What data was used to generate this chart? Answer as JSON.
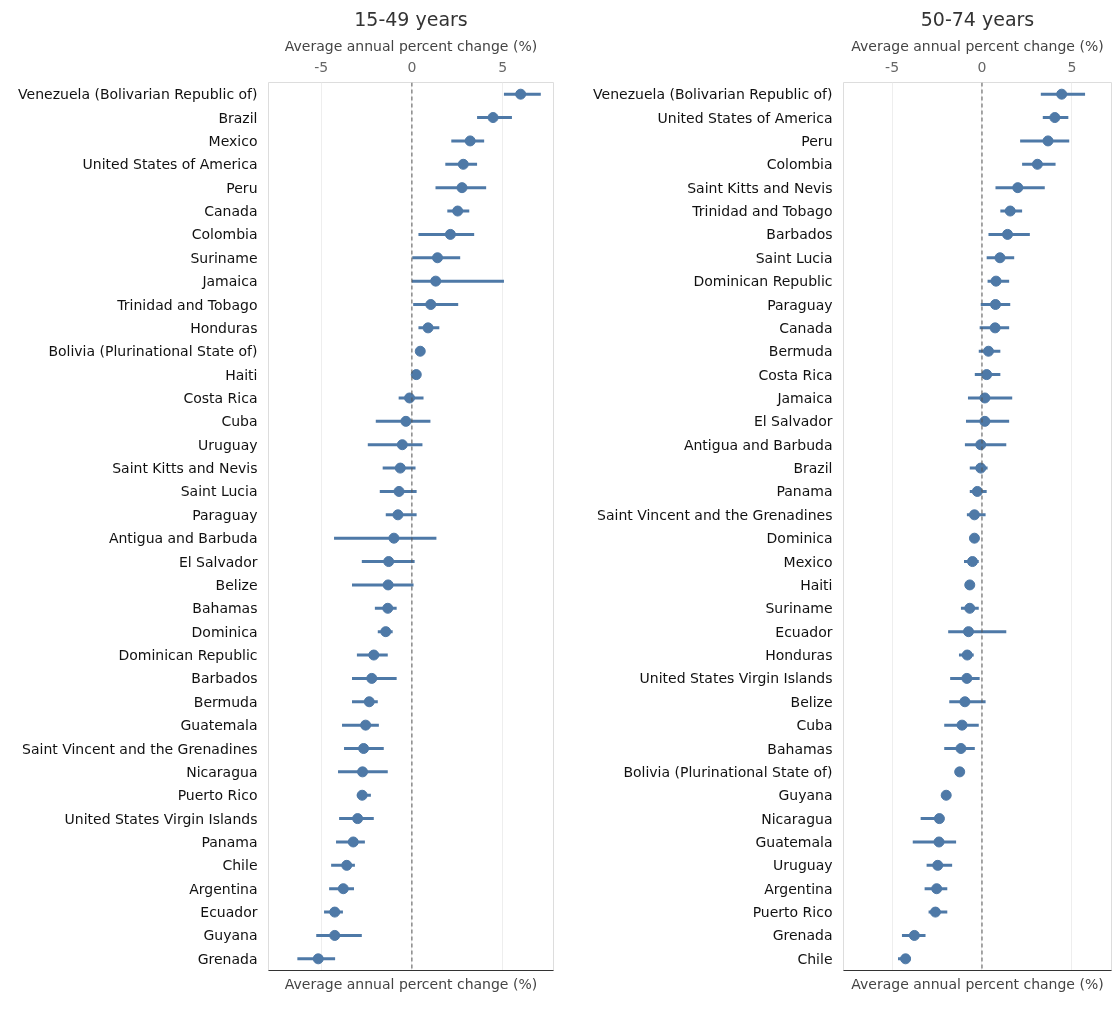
{
  "chart_data": [
    {
      "type": "scatter",
      "orientation": "horizontal",
      "title": "15-49 years",
      "xlabel": "Average annual percent change (%)",
      "marker": "circle",
      "grid": "x",
      "categories": [
        "Venezuela (Bolivarian Republic of)",
        "Brazil",
        "Mexico",
        "United States of America",
        "Peru",
        "Canada",
        "Colombia",
        "Suriname",
        "Jamaica",
        "Trinidad and Tobago",
        "Honduras",
        "Bolivia (Plurinational State of)",
        "Haiti",
        "Costa Rica",
        "Cuba",
        "Uruguay",
        "Saint Kitts and Nevis",
        "Saint Lucia",
        "Paraguay",
        "Antigua and Barbuda",
        "El Salvador",
        "Belize",
        "Bahamas",
        "Dominica",
        "Dominican Republic",
        "Barbados",
        "Bermuda",
        "Guatemala",
        "Saint Vincent and the Grenadines",
        "Nicaragua",
        "Puerto Rico",
        "United States Virgin Islands",
        "Panama",
        "Chile",
        "Argentina",
        "Ecuador",
        "Guyana",
        "Grenada"
      ],
      "series": [
        {
          "color": "#4e79a7",
          "values": [
            5.99,
            4.47,
            3.21,
            2.83,
            2.76,
            2.52,
            2.12,
            1.41,
            1.31,
            1.04,
            0.89,
            0.46,
            0.24,
            -0.13,
            -0.33,
            -0.53,
            -0.64,
            -0.71,
            -0.77,
            -0.99,
            -1.28,
            -1.31,
            -1.33,
            -1.44,
            -2.1,
            -2.21,
            -2.35,
            -2.55,
            -2.66,
            -2.72,
            -2.74,
            -2.99,
            -3.23,
            -3.59,
            -3.78,
            -4.25,
            -4.25,
            -5.16
          ],
          "errors": [
            [
              5.07,
              7.1
            ],
            [
              3.59,
              5.51
            ],
            [
              2.17,
              3.98
            ],
            [
              1.84,
              3.59
            ],
            [
              1.3,
              4.09
            ],
            [
              1.95,
              3.16
            ],
            [
              0.36,
              3.43
            ],
            [
              0.02,
              2.66
            ],
            [
              0.0,
              5.07
            ],
            [
              0.07,
              2.55
            ],
            [
              0.36,
              1.51
            ],
            null,
            null,
            [
              -0.73,
              0.64
            ],
            [
              -1.99,
              1.02
            ],
            [
              -2.43,
              0.58
            ],
            [
              -1.61,
              0.2
            ],
            [
              -1.77,
              0.26
            ],
            [
              -1.44,
              0.26
            ],
            [
              -4.29,
              1.35
            ],
            [
              -2.76,
              0.15
            ],
            [
              -3.3,
              0.09
            ],
            [
              -2.04,
              -0.84
            ],
            [
              -1.88,
              -1.06
            ],
            [
              -3.03,
              -1.33
            ],
            [
              -3.3,
              -0.84
            ],
            [
              -3.3,
              -1.88
            ],
            [
              -3.85,
              -1.82
            ],
            [
              -3.74,
              -1.55
            ],
            [
              -4.07,
              -1.33
            ],
            [
              -3.03,
              -2.26
            ],
            [
              -4.01,
              -2.1
            ],
            [
              -4.18,
              -2.59
            ],
            [
              -4.45,
              -3.14
            ],
            [
              -4.56,
              -3.19
            ],
            [
              -4.84,
              -3.8
            ],
            [
              -5.27,
              -2.76
            ],
            [
              -6.31,
              -4.23
            ]
          ]
        }
      ],
      "xlim": [
        -7.9,
        7.8
      ],
      "xticks": [
        -5,
        0,
        5
      ],
      "ref_lines": [
        {
          "axis": "x",
          "value": 0,
          "label": null,
          "color": "#555555",
          "line_style": "dashed"
        }
      ]
    },
    {
      "type": "scatter",
      "orientation": "horizontal",
      "title": "50-74 years",
      "xlabel": "Average annual percent change (%)",
      "marker": "circle",
      "grid": "x",
      "categories": [
        "Venezuela (Bolivarian Republic of)",
        "United States of America",
        "Peru",
        "Colombia",
        "Saint Kitts and Nevis",
        "Trinidad and Tobago",
        "Barbados",
        "Saint Lucia",
        "Dominican Republic",
        "Paraguay",
        "Canada",
        "Bermuda",
        "Costa Rica",
        "Jamaica",
        "El Salvador",
        "Antigua and Barbuda",
        "Brazil",
        "Panama",
        "Saint Vincent and the Grenadines",
        "Dominica",
        "Mexico",
        "Haiti",
        "Suriname",
        "Ecuador",
        "Honduras",
        "United States Virgin Islands",
        "Belize",
        "Cuba",
        "Bahamas",
        "Bolivia (Plurinational State of)",
        "Guyana",
        "Nicaragua",
        "Guatemala",
        "Uruguay",
        "Argentina",
        "Puerto Rico",
        "Grenada",
        "Chile"
      ],
      "series": [
        {
          "color": "#4e79a7",
          "values": [
            4.43,
            4.05,
            3.67,
            3.08,
            1.99,
            1.57,
            1.42,
            1.0,
            0.78,
            0.75,
            0.73,
            0.36,
            0.26,
            0.16,
            0.16,
            -0.07,
            -0.07,
            -0.26,
            -0.42,
            -0.42,
            -0.53,
            -0.68,
            -0.68,
            -0.75,
            -0.82,
            -0.84,
            -0.95,
            -1.11,
            -1.17,
            -1.24,
            -1.99,
            -2.37,
            -2.39,
            -2.46,
            -2.52,
            -2.59,
            -3.76,
            -4.25
          ],
          "errors": [
            [
              3.27,
              5.73
            ],
            [
              3.38,
              4.8
            ],
            [
              2.12,
              4.85
            ],
            [
              2.23,
              4.09
            ],
            [
              0.75,
              3.49
            ],
            [
              1.02,
              2.23
            ],
            [
              0.36,
              2.66
            ],
            [
              0.26,
              1.79
            ],
            [
              0.31,
              1.51
            ],
            [
              -0.07,
              1.57
            ],
            [
              -0.13,
              1.51
            ],
            [
              -0.18,
              1.02
            ],
            [
              -0.4,
              1.02
            ],
            [
              -0.78,
              1.68
            ],
            [
              -0.89,
              1.51
            ],
            [
              -0.95,
              1.35
            ],
            [
              -0.68,
              0.31
            ],
            [
              -0.68,
              0.26
            ],
            [
              -0.84,
              0.2
            ],
            null,
            [
              -1.0,
              -0.18
            ],
            null,
            [
              -1.17,
              -0.18
            ],
            [
              -1.88,
              1.35
            ],
            [
              -1.28,
              -0.46
            ],
            [
              -1.77,
              -0.13
            ],
            [
              -1.82,
              0.2
            ],
            [
              -2.1,
              -0.18
            ],
            [
              -2.1,
              -0.4
            ],
            null,
            [
              -2.2,
              -1.85
            ],
            [
              -3.41,
              -2.1
            ],
            [
              -3.85,
              -1.44
            ],
            [
              -3.08,
              -1.66
            ],
            [
              -3.19,
              -1.93
            ],
            [
              -2.97,
              -1.93
            ],
            [
              -4.45,
              -3.14
            ],
            [
              -4.67,
              -3.96
            ]
          ]
        }
      ],
      "xlim": [
        -7.7,
        7.2
      ],
      "xticks": [
        -5,
        0,
        5
      ],
      "ref_lines": [
        {
          "axis": "x",
          "value": 0,
          "label": null,
          "color": "#555555",
          "line_style": "dashed"
        }
      ]
    }
  ]
}
